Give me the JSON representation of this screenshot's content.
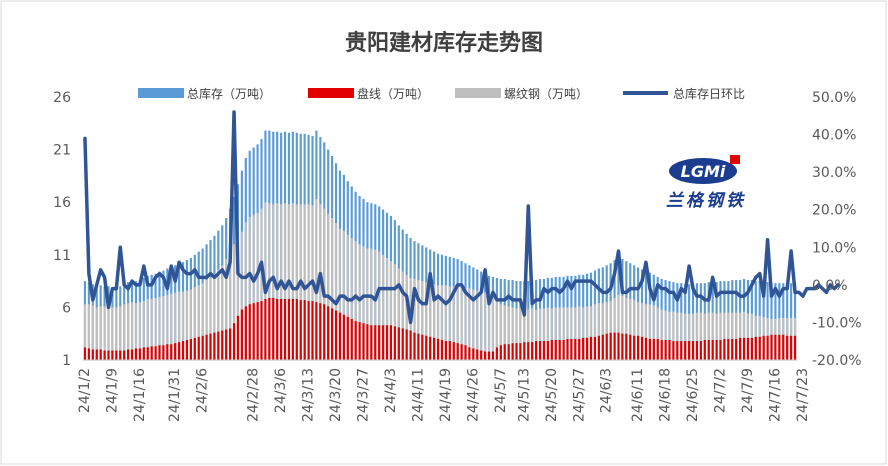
{
  "chart_data": {
    "type": "bar",
    "title": "贵阳建材库存走势图",
    "legend_position": "top",
    "grid": false,
    "y_left": {
      "min": 1,
      "max": 26,
      "ticks": [
        "1",
        "6",
        "11",
        "16",
        "21",
        "26"
      ]
    },
    "y_right": {
      "min": -20,
      "max": 50,
      "ticks": [
        "-20.0%",
        "-10.0%",
        "0.0%",
        "10.0%",
        "20.0%",
        "30.0%",
        "40.0%",
        "50.0%"
      ]
    },
    "x_tick_labels": [
      "24/1/2",
      "24/1/9",
      "24/1/16",
      "24/1/31",
      "24/2/6",
      "24/2/28",
      "24/3/6",
      "24/3/13",
      "24/3/20",
      "24/3/27",
      "24/4/3",
      "24/4/11",
      "24/4/19",
      "24/4/26",
      "24/5/7",
      "24/5/13",
      "24/5/20",
      "24/5/27",
      "24/6/3",
      "24/6/11",
      "24/6/18",
      "24/6/25",
      "24/7/2",
      "24/7/9",
      "24/7/16",
      "24/7/23"
    ],
    "x_tick_positions": [
      0,
      7,
      14,
      23,
      30,
      43,
      50,
      57,
      64,
      71,
      78,
      85,
      92,
      99,
      106,
      112,
      119,
      126,
      133,
      141,
      148,
      155,
      162,
      169,
      176,
      183
    ],
    "series": [
      {
        "name": "总库存（万吨）",
        "type": "bar",
        "color": "#5b9bd5",
        "values": [
          8.5,
          8.4,
          8.2,
          8.0,
          8.1,
          8.0,
          8.0,
          7.9,
          7.9,
          8.0,
          8.2,
          8.4,
          8.5,
          8.5,
          8.6,
          8.8,
          9.0,
          9.1,
          9.2,
          9.4,
          9.5,
          9.7,
          9.8,
          10.0,
          10.2,
          10.3,
          10.5,
          10.7,
          11.0,
          11.3,
          11.6,
          12.0,
          12.4,
          12.8,
          13.3,
          13.8,
          14.5,
          15.4,
          16.5,
          17.7,
          19.0,
          20.2,
          20.9,
          21.2,
          21.5,
          22.0,
          22.8,
          22.8,
          22.7,
          22.7,
          22.6,
          22.7,
          22.6,
          22.7,
          22.6,
          22.5,
          22.5,
          22.4,
          22.3,
          22.8,
          22.2,
          21.7,
          21.0,
          20.4,
          19.7,
          19.0,
          18.6,
          18.0,
          17.5,
          17.0,
          16.6,
          16.3,
          16.0,
          15.9,
          15.8,
          15.6,
          15.3,
          15.0,
          14.7,
          14.3,
          13.8,
          13.4,
          13.0,
          12.6,
          12.3,
          12.1,
          11.9,
          11.7,
          11.5,
          11.3,
          11.1,
          11.0,
          10.9,
          10.8,
          10.7,
          10.6,
          10.4,
          10.2,
          10.0,
          9.8,
          9.6,
          9.4,
          9.2,
          9.0,
          8.9,
          8.8,
          8.7,
          8.7,
          8.6,
          8.6,
          8.5,
          8.5,
          8.5,
          8.5,
          8.6,
          8.6,
          8.7,
          8.7,
          8.8,
          8.8,
          8.9,
          8.9,
          8.9,
          9.0,
          9.0,
          9.0,
          9.1,
          9.1,
          9.2,
          9.3,
          9.5,
          9.7,
          9.8,
          10.0,
          10.2,
          10.5,
          10.8,
          10.6,
          10.4,
          10.2,
          10.0,
          9.8,
          9.6,
          9.4,
          9.3,
          9.1,
          8.9,
          8.7,
          8.6,
          8.5,
          8.4,
          8.3,
          8.3,
          8.2,
          8.2,
          8.2,
          8.3,
          8.3,
          8.3,
          8.4,
          8.4,
          8.4,
          8.5,
          8.5,
          8.5,
          8.6,
          8.6,
          8.6,
          8.7,
          8.6,
          8.6,
          8.5,
          8.5,
          8.4,
          8.4,
          8.3,
          8.3,
          8.3,
          8.3,
          8.3,
          8.3,
          8.3
        ]
      },
      {
        "name": "盘线（万吨）",
        "type": "bar",
        "color": "#e00000",
        "values": [
          2.2,
          2.1,
          2.0,
          2.0,
          2.0,
          1.9,
          1.9,
          1.9,
          1.9,
          1.9,
          1.9,
          2.0,
          2.0,
          2.1,
          2.1,
          2.2,
          2.2,
          2.3,
          2.3,
          2.4,
          2.4,
          2.5,
          2.5,
          2.6,
          2.7,
          2.8,
          2.9,
          3.0,
          3.1,
          3.2,
          3.3,
          3.4,
          3.5,
          3.6,
          3.7,
          3.8,
          3.9,
          4.0,
          4.5,
          5.2,
          5.8,
          6.1,
          6.3,
          6.4,
          6.5,
          6.6,
          6.8,
          6.9,
          6.9,
          6.8,
          6.8,
          6.8,
          6.8,
          6.8,
          6.8,
          6.7,
          6.7,
          6.6,
          6.6,
          6.5,
          6.4,
          6.3,
          6.1,
          5.9,
          5.7,
          5.5,
          5.3,
          5.1,
          4.9,
          4.7,
          4.6,
          4.5,
          4.4,
          4.3,
          4.3,
          4.3,
          4.3,
          4.3,
          4.3,
          4.2,
          4.1,
          4.0,
          3.9,
          3.8,
          3.6,
          3.5,
          3.4,
          3.3,
          3.2,
          3.1,
          3.0,
          2.9,
          2.8,
          2.8,
          2.7,
          2.6,
          2.5,
          2.4,
          2.2,
          2.1,
          2.0,
          1.9,
          1.8,
          1.8,
          1.8,
          2.2,
          2.4,
          2.5,
          2.5,
          2.6,
          2.6,
          2.6,
          2.7,
          2.7,
          2.7,
          2.8,
          2.8,
          2.8,
          2.8,
          2.9,
          2.9,
          2.9,
          2.9,
          3.0,
          3.0,
          3.0,
          3.0,
          3.1,
          3.1,
          3.2,
          3.2,
          3.3,
          3.4,
          3.5,
          3.6,
          3.6,
          3.6,
          3.5,
          3.5,
          3.4,
          3.3,
          3.3,
          3.2,
          3.1,
          3.0,
          3.0,
          3.0,
          2.9,
          2.9,
          2.9,
          2.8,
          2.8,
          2.8,
          2.8,
          2.8,
          2.8,
          2.8,
          2.8,
          2.9,
          2.9,
          2.9,
          2.9,
          2.9,
          3.0,
          3.0,
          3.0,
          3.0,
          3.1,
          3.1,
          3.1,
          3.1,
          3.2,
          3.2,
          3.3,
          3.3,
          3.4,
          3.4,
          3.4,
          3.4,
          3.3,
          3.3,
          3.3
        ]
      },
      {
        "name": "螺纹钢（万吨）",
        "type": "bar",
        "color": "#bfbfbf",
        "values": [
          6.3,
          6.3,
          6.2,
          6.0,
          6.1,
          6.1,
          6.1,
          6.0,
          6.0,
          6.1,
          6.3,
          6.4,
          6.5,
          6.4,
          6.5,
          6.6,
          6.8,
          6.8,
          6.9,
          7.0,
          7.1,
          7.2,
          7.3,
          7.4,
          7.5,
          7.5,
          7.6,
          7.7,
          7.9,
          8.1,
          8.3,
          8.6,
          8.9,
          9.2,
          9.6,
          10.0,
          10.6,
          11.4,
          12.0,
          12.5,
          13.2,
          14.1,
          14.6,
          14.8,
          15.0,
          15.4,
          16.0,
          15.9,
          15.8,
          15.9,
          15.8,
          15.9,
          15.8,
          15.9,
          15.8,
          15.8,
          15.8,
          15.8,
          15.7,
          16.3,
          15.8,
          15.4,
          14.9,
          14.5,
          14.0,
          13.5,
          13.3,
          12.9,
          12.6,
          12.3,
          12.0,
          11.8,
          11.6,
          11.6,
          11.5,
          11.3,
          11.0,
          10.7,
          10.4,
          10.1,
          9.7,
          9.4,
          9.1,
          8.8,
          8.7,
          8.6,
          8.5,
          8.4,
          8.3,
          8.2,
          8.1,
          8.1,
          8.1,
          8.0,
          8.0,
          8.0,
          7.9,
          7.8,
          7.8,
          7.7,
          7.6,
          7.5,
          7.4,
          7.2,
          7.1,
          6.6,
          6.3,
          6.2,
          6.1,
          6.0,
          5.9,
          5.9,
          5.8,
          5.8,
          5.9,
          5.8,
          5.9,
          5.9,
          6.0,
          5.9,
          6.0,
          6.0,
          6.0,
          6.0,
          6.0,
          6.0,
          6.1,
          6.0,
          6.1,
          6.1,
          6.3,
          6.4,
          6.4,
          6.5,
          6.6,
          6.9,
          7.2,
          7.1,
          6.9,
          6.8,
          6.7,
          6.5,
          6.4,
          6.3,
          6.3,
          6.2,
          6.0,
          5.8,
          5.7,
          5.6,
          5.6,
          5.5,
          5.5,
          5.4,
          5.4,
          5.4,
          5.5,
          5.5,
          5.4,
          5.5,
          5.5,
          5.4,
          5.5,
          5.5,
          5.5,
          5.5,
          5.5,
          5.5,
          5.6,
          5.4,
          5.4,
          5.2,
          5.2,
          5.1,
          5.0,
          4.9,
          4.9,
          5.0,
          5.0,
          5.0,
          5.0,
          5.0
        ]
      },
      {
        "name": "总库存日环比",
        "type": "line",
        "axis": "right",
        "color": "#2f5597",
        "values": [
          39,
          3,
          -4,
          0,
          4,
          2,
          -6,
          -1,
          -1,
          10,
          0,
          -1,
          1,
          0,
          0,
          5,
          0,
          0,
          2,
          3,
          2,
          -1,
          5,
          1,
          6,
          4,
          3,
          3,
          4,
          2,
          2,
          2,
          3,
          2,
          3,
          4,
          2,
          6,
          46,
          3,
          2,
          2,
          3,
          1,
          3,
          6,
          -2,
          1,
          2,
          -1,
          1,
          -1,
          1,
          -1,
          -1,
          1,
          -1,
          0,
          1,
          -2,
          3,
          -3,
          -3,
          -4,
          -5,
          -3,
          -3,
          -4,
          -4,
          -3,
          -4,
          -3,
          -3,
          -3,
          -4,
          -1,
          -1,
          -1,
          -1,
          -1,
          0,
          -2,
          -3,
          -10,
          -1,
          -4,
          -5,
          -5,
          3,
          -4,
          -3,
          -4,
          -5,
          -4,
          -2,
          0,
          0,
          -2,
          -3,
          -4,
          -3,
          -2,
          4,
          -5,
          -2,
          -4,
          -4,
          -4,
          -3,
          -4,
          -4,
          -4,
          -8,
          21,
          -5,
          -4,
          -4,
          -1,
          -2,
          -1,
          -1,
          -2,
          -1,
          1,
          -1,
          1,
          1,
          1,
          1,
          1,
          0,
          -1,
          -2,
          -2,
          -1,
          3,
          9,
          -2,
          -2,
          -1,
          -1,
          -1,
          1,
          6,
          -1,
          -4,
          0,
          -1,
          -1,
          -2,
          -2,
          -4,
          -1,
          -2,
          5,
          -1,
          -3,
          -3,
          -4,
          -4,
          2,
          -3,
          -2,
          -2,
          -2,
          -2,
          -2,
          -3,
          -3,
          -2,
          0,
          2,
          3,
          -3,
          12,
          -3,
          -1,
          -3,
          -1,
          -1,
          9,
          -2,
          -2,
          -3,
          -1,
          -1,
          -1,
          0,
          -1,
          -2,
          0,
          -1,
          0
        ]
      }
    ]
  },
  "logo": {
    "brand_text": "兰格钢铁",
    "mark_text": "LGMi"
  }
}
